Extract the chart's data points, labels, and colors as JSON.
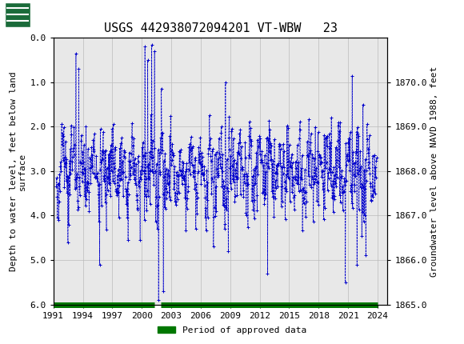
{
  "title": "USGS 442938072094201 VT-WBW   23",
  "ylabel_left": "Depth to water level, feet below land\nsurface",
  "ylabel_right": "Groundwater level above NAVD 1988, feet",
  "ylim_left": [
    6.0,
    0.0
  ],
  "ylim_right": [
    1865.0,
    1871.0
  ],
  "xlim": [
    1991,
    2025
  ],
  "yticks_left": [
    0.0,
    1.0,
    2.0,
    3.0,
    4.0,
    5.0,
    6.0
  ],
  "yticks_right": [
    1865.0,
    1866.0,
    1867.0,
    1868.0,
    1869.0,
    1870.0
  ],
  "xticks": [
    1991,
    1994,
    1997,
    2000,
    2003,
    2006,
    2009,
    2012,
    2015,
    2018,
    2021,
    2024
  ],
  "header_color": "#1a6b3a",
  "data_color": "#0000cc",
  "approved_color": "#007700",
  "plot_bg_color": "#e8e8e8",
  "grid_color": "#bbbbbb",
  "title_fontsize": 11,
  "axis_fontsize": 8,
  "tick_fontsize": 8,
  "legend_label": "Period of approved data"
}
